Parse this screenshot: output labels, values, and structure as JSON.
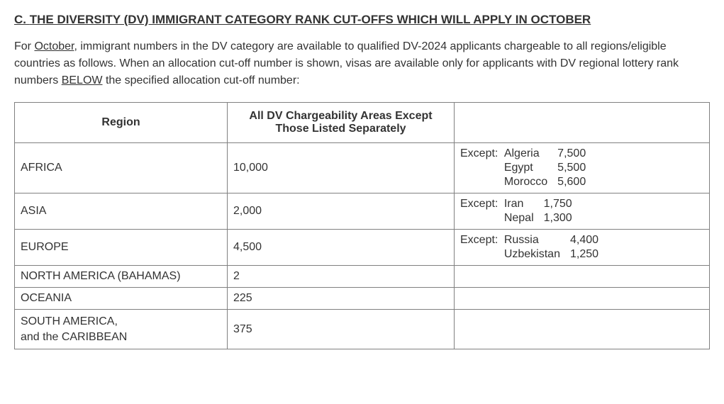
{
  "heading_prefix": "C.  ",
  "heading_text": "THE DIVERSITY (DV) IMMIGRANT CATEGORY RANK CUT-OFFS WHICH WILL APPLY IN OCTOBER",
  "intro_1": "For ",
  "intro_month": "October",
  "intro_2": ", immigrant numbers in the DV category are available to qualified DV-2024 applicants chargeable to all regions/eligible countries as follows. When an allocation cut-off number is shown, visas are available only for applicants with DV regional lottery rank numbers ",
  "intro_below": "BELOW",
  "intro_3": " the specified allocation cut-off number:",
  "table": {
    "header_region": "Region",
    "header_cutoff_line1": "All DV Chargeability Areas Except",
    "header_cutoff_line2": "Those Listed Separately",
    "rows": {
      "africa": {
        "region": "AFRICA",
        "cutoff": "10,000",
        "except_prefix": "Except:",
        "exceptions": [
          {
            "country": "Algeria",
            "value": "7,500"
          },
          {
            "country": "Egypt",
            "value": "5,500"
          },
          {
            "country": "Morocco",
            "value": "5,600"
          }
        ]
      },
      "asia": {
        "region": "ASIA",
        "cutoff": "2,000",
        "except_prefix": "Except:",
        "exceptions": [
          {
            "country": "Iran",
            "value": "1,750"
          },
          {
            "country": "Nepal",
            "value": "1,300"
          }
        ]
      },
      "europe": {
        "region": "EUROPE",
        "cutoff": "4,500",
        "except_prefix": "Except:",
        "exceptions": [
          {
            "country": "Russia",
            "value": "4,400"
          },
          {
            "country": "Uzbekistan",
            "value": "1,250"
          }
        ]
      },
      "north_america": {
        "region": "NORTH AMERICA (BAHAMAS)",
        "cutoff": "2"
      },
      "oceania": {
        "region": "OCEANIA",
        "cutoff": "225"
      },
      "south_america": {
        "region_line1": "SOUTH AMERICA,",
        "region_line2": "and the CARIBBEAN",
        "cutoff": "375"
      }
    }
  }
}
